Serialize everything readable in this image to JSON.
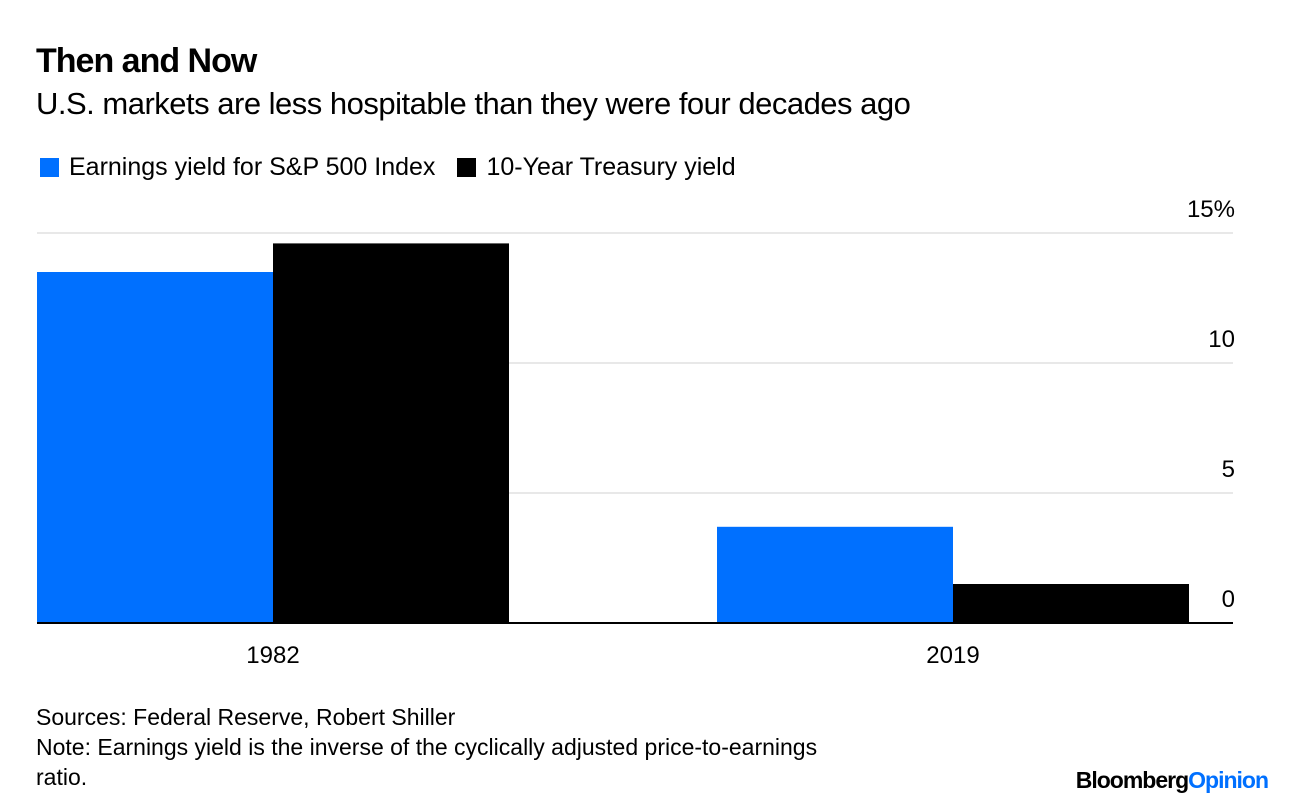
{
  "title": "Then and Now",
  "subtitle": "U.S. markets are less hospitable than they were four decades ago",
  "legend": [
    {
      "label": "Earnings yield for S&P 500 Index",
      "color": "#0070ff"
    },
    {
      "label": "10-Year Treasury yield",
      "color": "#000000"
    }
  ],
  "footer": {
    "sources": "Sources: Federal Reserve, Robert Shiller",
    "note_line1": "Note: Earnings yield is the inverse of the cyclically adjusted price-to-earnings",
    "note_line2": "ratio.",
    "logo_brand": "Bloomberg",
    "logo_section": "Opinion"
  },
  "chart_data": {
    "type": "bar",
    "title": "Then and Now",
    "subtitle": "U.S. markets are less hospitable than they were four decades ago",
    "categories": [
      "1982",
      "2019"
    ],
    "series": [
      {
        "name": "Earnings yield for S&P 500 Index",
        "color": "#0070ff",
        "values": [
          13.5,
          3.7
        ]
      },
      {
        "name": "10-Year Treasury yield",
        "color": "#000000",
        "values": [
          14.6,
          1.5
        ]
      }
    ],
    "xlabel": "",
    "ylabel": "",
    "ylim": [
      0,
      15
    ],
    "yticks": [
      0,
      5,
      10,
      15
    ],
    "ytick_labels": [
      "0",
      "5",
      "10",
      "15%"
    ],
    "y_axis_side": "right",
    "grid": true,
    "legend_position": "top-left"
  }
}
